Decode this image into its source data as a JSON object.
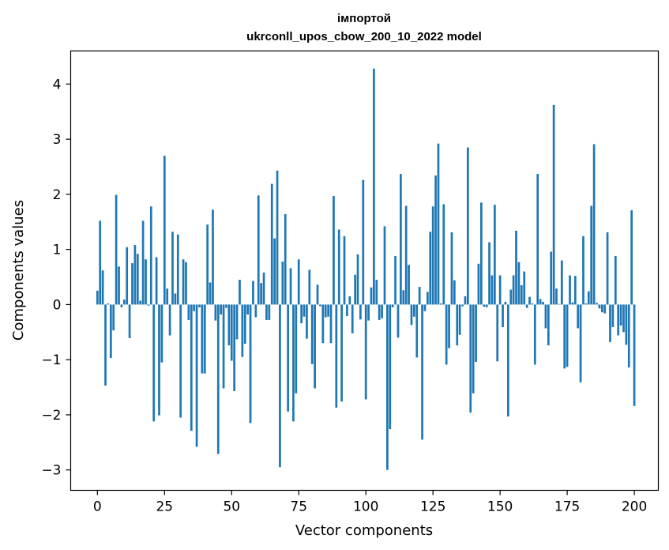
{
  "chart_data": {
    "type": "bar",
    "title_line1": "імпортой",
    "title_line2": "ukrconll_upos_cbow_200_10_2022 model",
    "xlabel": "Vector components",
    "ylabel": "Components values",
    "xlim": [
      -9.95,
      208.95
    ],
    "ylim": [
      -3.37,
      4.6
    ],
    "xticks": [
      0,
      25,
      50,
      75,
      100,
      125,
      150,
      175,
      200
    ],
    "yticks": [
      -3,
      -2,
      -1,
      0,
      1,
      2,
      3,
      4
    ],
    "ytick_labels": [
      "−3",
      "−2",
      "−1",
      "0",
      "1",
      "2",
      "3",
      "4"
    ],
    "bar_color": "#1f77b4",
    "grid": false,
    "values": [
      0.25,
      1.52,
      0.62,
      -1.47,
      0.02,
      -0.97,
      -0.47,
      1.99,
      0.69,
      -0.05,
      0.09,
      1.04,
      -0.61,
      0.75,
      1.08,
      0.92,
      0.07,
      1.52,
      0.82,
      -0.02,
      1.78,
      -2.12,
      0.86,
      -2.01,
      -1.05,
      2.7,
      0.29,
      -0.56,
      1.32,
      0.2,
      1.27,
      -2.05,
      0.82,
      0.77,
      -0.28,
      -2.29,
      -0.12,
      -2.58,
      -0.05,
      -1.25,
      -1.25,
      1.45,
      0.4,
      1.72,
      -0.29,
      -2.71,
      -0.18,
      -1.52,
      -0.06,
      -0.74,
      -1.02,
      -1.57,
      -0.63,
      0.45,
      -0.95,
      -0.71,
      -0.18,
      -2.15,
      0.43,
      -0.23,
      1.98,
      0.39,
      0.58,
      -0.28,
      -0.28,
      2.19,
      1.2,
      2.43,
      -2.95,
      0.78,
      1.64,
      -1.94,
      0.66,
      -2.12,
      -1.61,
      0.82,
      -0.34,
      -0.22,
      -0.62,
      0.63,
      -1.08,
      -1.52,
      0.36,
      -0.03,
      -0.7,
      -0.23,
      -0.22,
      -0.7,
      1.97,
      -1.87,
      1.36,
      -1.76,
      1.24,
      -0.21,
      0.15,
      -0.52,
      0.54,
      0.91,
      -0.27,
      2.26,
      -1.72,
      -0.29,
      0.31,
      4.28,
      0.45,
      -0.28,
      -0.25,
      1.42,
      -3.0,
      -2.26,
      -0.05,
      0.88,
      -0.6,
      2.37,
      0.26,
      1.79,
      0.72,
      -0.37,
      -0.22,
      -0.96,
      0.32,
      -2.45,
      -0.12,
      0.23,
      1.32,
      1.78,
      2.34,
      2.92,
      0.02,
      1.82,
      -1.09,
      -0.79,
      1.31,
      0.44,
      -0.74,
      -0.55,
      -0.03,
      0.15,
      2.85,
      -1.96,
      -1.61,
      -1.04,
      0.74,
      1.85,
      -0.04,
      -0.05,
      1.13,
      0.53,
      1.81,
      -1.03,
      0.53,
      -0.41,
      0.05,
      -2.03,
      0.27,
      0.53,
      1.34,
      0.77,
      0.35,
      0.6,
      -0.06,
      0.14,
      0.02,
      -1.09,
      2.37,
      0.1,
      0.05,
      -0.43,
      -0.74,
      0.96,
      3.62,
      0.29,
      0.01,
      0.8,
      -1.16,
      -1.13,
      0.53,
      0.04,
      0.52,
      -0.43,
      -1.41,
      1.24,
      0.02,
      0.24,
      1.79,
      2.91,
      0.03,
      -0.07,
      -0.14,
      -0.16,
      1.31,
      -0.68,
      -0.41,
      0.88,
      -0.56,
      -0.38,
      -0.5,
      -0.73,
      -1.14,
      1.71,
      -1.84
    ]
  }
}
